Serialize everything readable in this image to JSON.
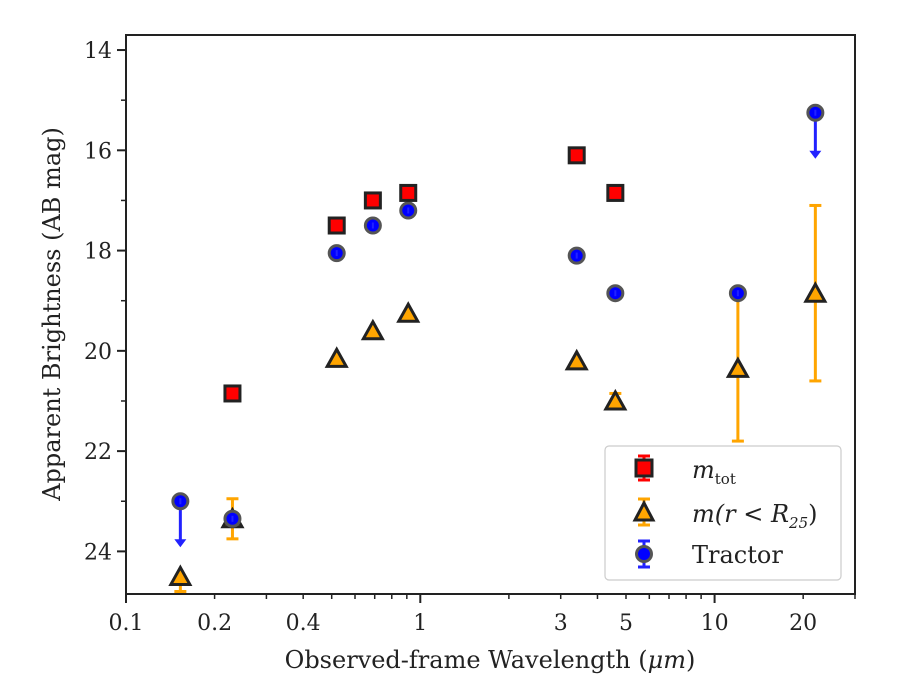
{
  "chart_data": {
    "type": "scatter",
    "title": "",
    "xlabel": "Observed-frame Wavelength (",
    "xlabel_unit": "μm",
    "xlabel_close": ")",
    "ylabel": "Apparent Brightness (AB mag)",
    "xscale": "log",
    "xlim": [
      0.1,
      30
    ],
    "ylim": [
      24.85,
      13.7
    ],
    "y_inverted": true,
    "x_ticks": [
      0.1,
      0.2,
      0.4,
      1,
      3,
      5,
      10,
      20
    ],
    "x_tick_labels": [
      "0.1",
      "0.2",
      "0.4",
      "1",
      "3",
      "5",
      "10",
      "20"
    ],
    "y_ticks": [
      14,
      16,
      18,
      20,
      22,
      24
    ],
    "y_tick_labels": [
      "14",
      "16",
      "18",
      "20",
      "22",
      "24"
    ],
    "grid": false,
    "legend_position": "lower-right",
    "series": [
      {
        "name": "m_tot",
        "legend_main": "m",
        "legend_sub": "tot",
        "marker": "square",
        "color": "#ff0000",
        "edge_color": "#222222",
        "points": [
          {
            "x": 0.23,
            "y": 20.85
          },
          {
            "x": 0.52,
            "y": 17.5
          },
          {
            "x": 0.69,
            "y": 17.0
          },
          {
            "x": 0.91,
            "y": 16.85
          },
          {
            "x": 3.4,
            "y": 16.1
          },
          {
            "x": 4.6,
            "y": 16.85
          }
        ]
      },
      {
        "name": "m(r < R25)",
        "legend_main": "m",
        "legend_mid": "(r < R",
        "legend_sub": "25",
        "legend_close": ")",
        "marker": "triangle",
        "color": "#ffa500",
        "edge_color": "#222222",
        "error_color": "#ffa500",
        "points": [
          {
            "x": 0.153,
            "y": 24.5,
            "err_low": 0.3,
            "err_high": 0.0
          },
          {
            "x": 0.23,
            "y": 23.35,
            "err_low": 0.4,
            "err_high": 0.4
          },
          {
            "x": 0.52,
            "y": 20.15,
            "err_low": 0.0,
            "err_high": 0.0
          },
          {
            "x": 0.69,
            "y": 19.6,
            "err_low": 0.0,
            "err_high": 0.0
          },
          {
            "x": 0.91,
            "y": 19.25,
            "err_low": 0.0,
            "err_high": 0.0
          },
          {
            "x": 3.4,
            "y": 20.2,
            "err_low": 0.0,
            "err_high": 0.0
          },
          {
            "x": 4.6,
            "y": 21.0,
            "err_low": 0.15,
            "err_high": 0.15
          },
          {
            "x": 12.0,
            "y": 20.35,
            "err_low": 1.45,
            "err_high": 1.45
          },
          {
            "x": 22.0,
            "y": 18.85,
            "err_low": 1.75,
            "err_high": 1.75
          }
        ]
      },
      {
        "name": "Tractor",
        "marker": "circle",
        "color": "#0000ff",
        "edge_color": "#555555",
        "error_color": "#2222ff",
        "points": [
          {
            "x": 0.153,
            "y": 23.0,
            "upper_limit": true
          },
          {
            "x": 0.23,
            "y": 23.35
          },
          {
            "x": 0.52,
            "y": 18.05
          },
          {
            "x": 0.69,
            "y": 17.5
          },
          {
            "x": 0.91,
            "y": 17.2
          },
          {
            "x": 3.4,
            "y": 18.1
          },
          {
            "x": 4.6,
            "y": 18.85
          },
          {
            "x": 12.0,
            "y": 18.85
          },
          {
            "x": 22.0,
            "y": 15.25,
            "upper_limit": true
          }
        ]
      }
    ]
  }
}
